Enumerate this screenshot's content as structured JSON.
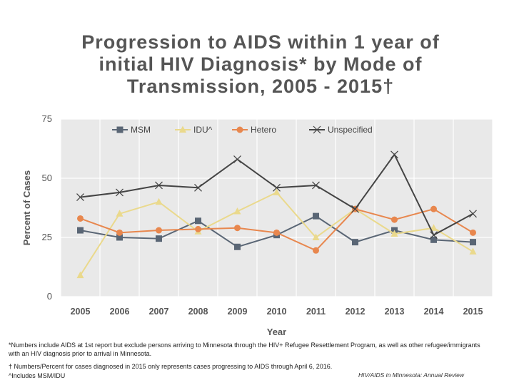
{
  "title_lines": [
    "Progression to AIDS within 1 year of",
    "initial HIV Diagnosis* by Mode of",
    "Transmission, 2005 - 2015†"
  ],
  "footnotes": {
    "note1": "*Numbers include AIDS at 1st report but exclude persons arriving to Minnesota through the HIV+ Refugee Resettlement Program, as well as other refugee/immigrants with an HIV diagnosis prior to arrival in Minnesota.",
    "note2": "† Numbers/Percent for cases diagnosed in 2015 only represents cases progressing to AIDS through April 6, 2016.",
    "note3": "^Includes MSM/IDU",
    "credit": "HIV/AIDS in Minnesota: Annual Review"
  },
  "chart_data": {
    "type": "line",
    "xlabel": "Year",
    "ylabel": "Percent of Cases",
    "categories": [
      "2005",
      "2006",
      "2007",
      "2008",
      "2009",
      "2010",
      "2011",
      "2012",
      "2013",
      "2014",
      "2015"
    ],
    "yticks": [
      0,
      25,
      50,
      75
    ],
    "ylim": [
      0,
      75
    ],
    "legend_position": "top",
    "series": [
      {
        "name": "MSM",
        "color": "#5a6675",
        "marker": "square",
        "values": [
          28,
          25,
          24.5,
          32,
          21,
          26,
          34,
          23,
          28,
          24,
          23
        ]
      },
      {
        "name": "IDU^",
        "color": "#ead98c",
        "marker": "triangle",
        "values": [
          9,
          35,
          40,
          27.5,
          36,
          44,
          25,
          37,
          26.5,
          29,
          19
        ]
      },
      {
        "name": "Hetero",
        "color": "#e8874e",
        "marker": "circle",
        "values": [
          33,
          27,
          28,
          28.5,
          29,
          27,
          19.5,
          37,
          32.5,
          37,
          27
        ]
      },
      {
        "name": "Unspecified",
        "color": "#444444",
        "marker": "x",
        "values": [
          42,
          44,
          47,
          46,
          58,
          46,
          47,
          37,
          60,
          26,
          35
        ]
      }
    ]
  }
}
